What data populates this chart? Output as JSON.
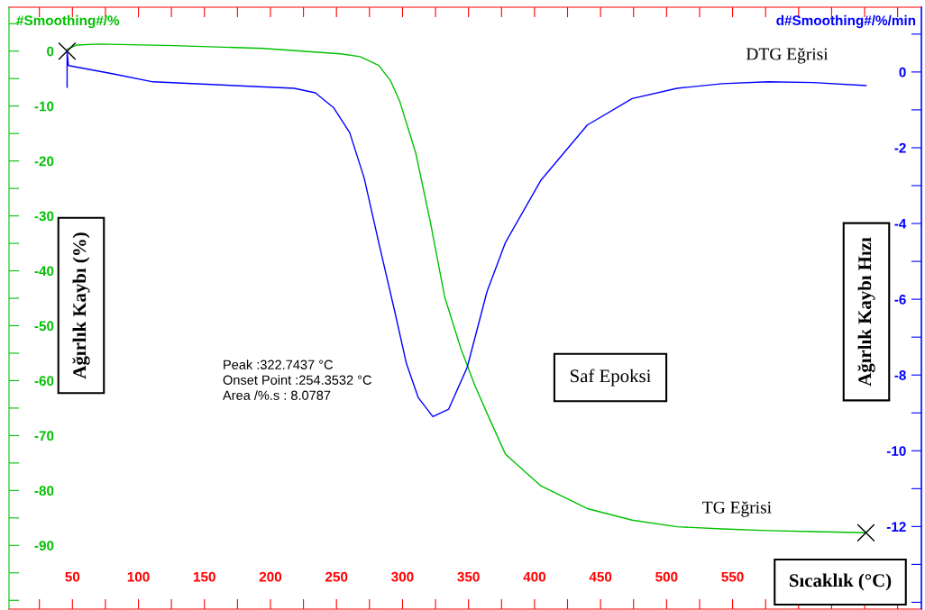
{
  "chart_data": {
    "type": "line",
    "ylabel": "#Smoothing#/%",
    "y2label": "d#Smoothing#/%/min",
    "xlim": [
      2,
      693
    ],
    "ylim": [
      -101.6,
      8
    ],
    "y2lim": [
      -14.18,
      1.71
    ],
    "xticks": [
      {
        "value": 25,
        "label": null
      },
      50,
      {
        "value": 75,
        "label": null
      },
      100,
      {
        "value": 125,
        "label": null
      },
      150,
      {
        "value": 175,
        "label": null
      },
      200,
      {
        "value": 225,
        "label": null
      },
      250,
      {
        "value": 275,
        "label": null
      },
      300,
      {
        "value": 325,
        "label": null
      },
      350,
      {
        "value": 375,
        "label": null
      },
      400,
      {
        "value": 425,
        "label": null
      },
      450,
      {
        "value": 475,
        "label": null
      },
      500,
      {
        "value": 525,
        "label": null
      },
      550,
      {
        "value": 575,
        "label": null
      },
      {
        "value": 600,
        "label": null
      },
      {
        "value": 625,
        "label": null
      },
      {
        "value": 650,
        "label": null
      },
      {
        "value": 675,
        "label": null
      }
    ],
    "yticks": [
      {
        "value": -100,
        "label": null
      },
      {
        "value": -95,
        "label": null
      },
      -90,
      {
        "value": -85,
        "label": null
      },
      -80,
      {
        "value": -75,
        "label": null
      },
      -70,
      {
        "value": -65,
        "label": null
      },
      -60,
      {
        "value": -55,
        "label": null
      },
      -50,
      {
        "value": -45,
        "label": null
      },
      -40,
      {
        "value": -35,
        "label": null
      },
      -30,
      {
        "value": -25,
        "label": null
      },
      -20,
      {
        "value": -15,
        "label": null
      },
      -10,
      {
        "value": -5,
        "label": null
      },
      0,
      {
        "value": 5,
        "label": null
      }
    ],
    "y2ticks": [
      {
        "value": -14,
        "label": null
      },
      {
        "value": -13,
        "label": null
      },
      -12,
      {
        "value": -11,
        "label": null
      },
      -10,
      {
        "value": -9,
        "label": null
      },
      -8,
      {
        "value": -7,
        "label": null
      },
      -6,
      {
        "value": -5,
        "label": null
      },
      -4,
      {
        "value": -3,
        "label": null
      },
      -2,
      {
        "value": -1,
        "label": null
      },
      0,
      {
        "value": 1,
        "label": null
      }
    ],
    "grid": false,
    "legend": false,
    "series": [
      {
        "name": "TG Eğrisi",
        "color": "#00c000",
        "x": [
          46,
          53,
          70,
          127,
          195,
          253,
          268,
          282,
          291,
          298,
          310,
          321,
          332,
          344,
          355,
          366,
          378,
          405,
          440,
          474,
          508,
          542,
          577,
          611,
          651
        ],
        "values": [
          0.3,
          1.1,
          1.3,
          1.0,
          0.5,
          -0.5,
          -1.0,
          -2.6,
          -5.4,
          -9.2,
          -18.5,
          -31,
          -44.8,
          -54,
          -61,
          -67,
          -73.4,
          -79.2,
          -83.3,
          -85.4,
          -86.6,
          -87.0,
          -87.3,
          -87.5,
          -87.7
        ]
      },
      {
        "name": "DTG Eğrisi",
        "color": "#0000ff",
        "axis": "y2",
        "x": [
          46,
          46,
          47,
          81,
          111,
          173,
          218,
          234,
          248,
          260,
          271,
          282,
          294,
          303,
          312,
          323,
          335,
          349,
          364,
          378,
          405,
          440,
          474,
          508,
          542,
          577,
          611,
          651
        ],
        "values": [
          -0.4,
          0.55,
          0.17,
          -0.05,
          -0.26,
          -0.36,
          -0.43,
          -0.55,
          -0.95,
          -1.6,
          -2.8,
          -4.5,
          -6.3,
          -7.7,
          -8.6,
          -9.1,
          -8.9,
          -7.8,
          -5.8,
          -4.5,
          -2.85,
          -1.4,
          -0.7,
          -0.43,
          -0.31,
          -0.26,
          -0.28,
          -0.36
        ]
      },
      {
        "type": "scatter",
        "marker": "cross",
        "color": "#000000",
        "x": [
          46,
          651
        ],
        "values": [
          0,
          -87.7
        ]
      }
    ],
    "annotations": [
      "Ağırlık Kaybı (%)",
      "Ağırlık Kaybı Hızı",
      "Sıcaklık (°C)",
      "Saf Epoksi",
      "Peak :322.7437 °C",
      "Onset Point :254.3532 °C",
      "Area /%.s : 8.0787"
    ]
  }
}
